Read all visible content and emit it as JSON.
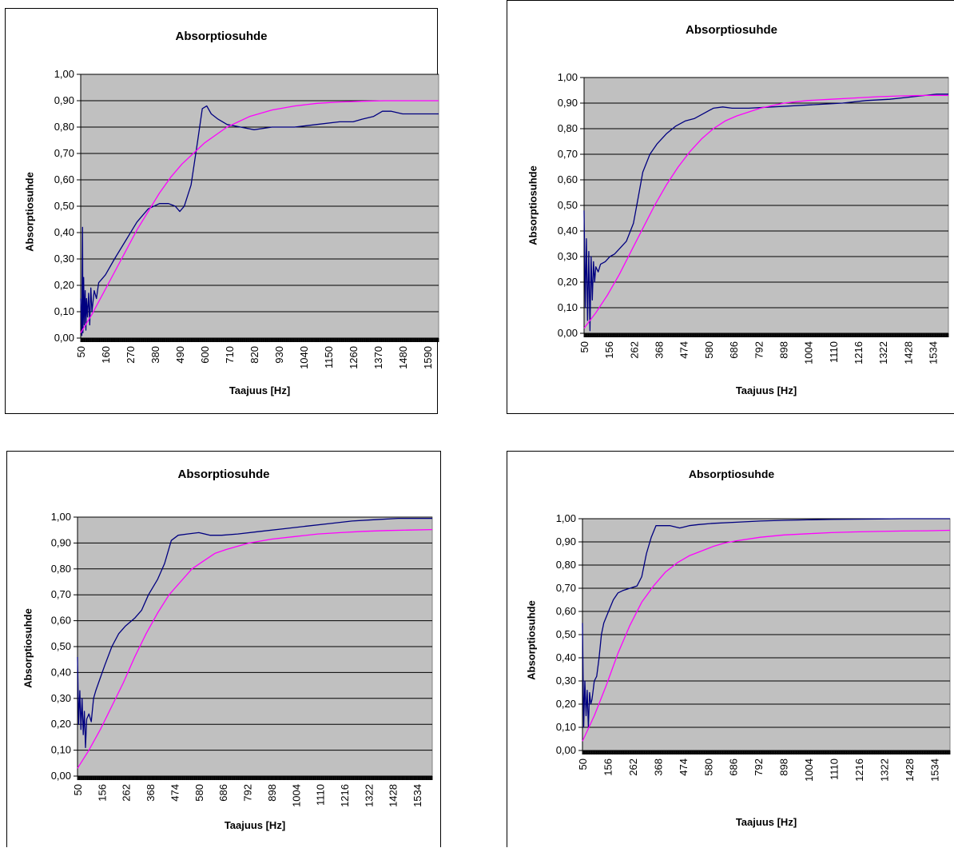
{
  "chart_data": [
    {
      "type": "line",
      "title": "Absorptiosuhde",
      "xlabel": "Taajuus [Hz]",
      "ylabel": "Absorptiosuhde",
      "x_tick_labels": [
        "50",
        "160",
        "270",
        "380",
        "490",
        "600",
        "710",
        "820",
        "930",
        "1040",
        "1150",
        "1260",
        "1370",
        "1480",
        "1590"
      ],
      "y_tick_labels": [
        "0,00",
        "0,10",
        "0,20",
        "0,30",
        "0,40",
        "0,50",
        "0,60",
        "0,70",
        "0,80",
        "0,90",
        "1,00"
      ],
      "xlim": [
        50,
        1640
      ],
      "ylim": [
        0,
        1
      ],
      "grid": true,
      "plot_background": "#c0c0c0",
      "series": [
        {
          "color": "#000080",
          "x": [
            50,
            55,
            58,
            60,
            63,
            66,
            70,
            73,
            76,
            80,
            85,
            90,
            95,
            100,
            110,
            120,
            130,
            140,
            160,
            200,
            250,
            300,
            350,
            400,
            440,
            470,
            490,
            510,
            540,
            570,
            590,
            610,
            630,
            660,
            700,
            760,
            820,
            900,
            1000,
            1100,
            1200,
            1260,
            1300,
            1350,
            1390,
            1430,
            1480,
            1550,
            1640
          ],
          "y": [
            0.15,
            0.01,
            0.42,
            0.02,
            0.23,
            0.05,
            0.18,
            0.03,
            0.15,
            0.08,
            0.17,
            0.05,
            0.19,
            0.1,
            0.18,
            0.15,
            0.21,
            0.22,
            0.24,
            0.3,
            0.37,
            0.44,
            0.49,
            0.51,
            0.51,
            0.5,
            0.48,
            0.5,
            0.58,
            0.75,
            0.87,
            0.88,
            0.85,
            0.83,
            0.81,
            0.8,
            0.79,
            0.8,
            0.8,
            0.81,
            0.82,
            0.82,
            0.83,
            0.84,
            0.86,
            0.86,
            0.85,
            0.85,
            0.85
          ]
        },
        {
          "color": "#ff00ff",
          "x": [
            50,
            100,
            150,
            200,
            250,
            300,
            350,
            400,
            450,
            500,
            550,
            600,
            650,
            700,
            800,
            900,
            1000,
            1100,
            1200,
            1300,
            1400,
            1500,
            1640
          ],
          "y": [
            0.02,
            0.09,
            0.17,
            0.25,
            0.33,
            0.41,
            0.48,
            0.55,
            0.61,
            0.66,
            0.7,
            0.74,
            0.77,
            0.8,
            0.84,
            0.865,
            0.88,
            0.89,
            0.895,
            0.898,
            0.9,
            0.9,
            0.9
          ]
        }
      ]
    },
    {
      "type": "line",
      "title": "Absorptiosuhde",
      "xlabel": "Taajuus [Hz]",
      "ylabel": "Absorptiosuhde",
      "x_tick_labels": [
        "50",
        "156",
        "262",
        "368",
        "474",
        "580",
        "686",
        "792",
        "898",
        "1004",
        "1110",
        "1216",
        "1322",
        "1428",
        "1534"
      ],
      "y_tick_labels": [
        "0,00",
        "0,10",
        "0,20",
        "0,30",
        "0,40",
        "0,50",
        "0,60",
        "0,70",
        "0,80",
        "0,90",
        "1,00"
      ],
      "xlim": [
        50,
        1600
      ],
      "ylim": [
        0,
        1
      ],
      "grid": true,
      "plot_background": "#c0c0c0",
      "series": [
        {
          "color": "#000080",
          "x": [
            50,
            55,
            60,
            65,
            70,
            75,
            80,
            85,
            90,
            95,
            100,
            110,
            120,
            140,
            160,
            180,
            200,
            230,
            260,
            280,
            300,
            330,
            360,
            400,
            440,
            480,
            520,
            560,
            600,
            640,
            680,
            750,
            850,
            950,
            1050,
            1150,
            1250,
            1350,
            1450,
            1550,
            1600
          ],
          "y": [
            0.48,
            0.1,
            0.37,
            0.05,
            0.32,
            0.01,
            0.3,
            0.13,
            0.28,
            0.2,
            0.26,
            0.24,
            0.27,
            0.28,
            0.3,
            0.31,
            0.33,
            0.36,
            0.43,
            0.53,
            0.63,
            0.7,
            0.74,
            0.78,
            0.81,
            0.83,
            0.84,
            0.86,
            0.88,
            0.885,
            0.88,
            0.88,
            0.885,
            0.89,
            0.895,
            0.9,
            0.91,
            0.915,
            0.925,
            0.935,
            0.935
          ]
        },
        {
          "color": "#ff00ff",
          "x": [
            50,
            100,
            150,
            200,
            250,
            300,
            350,
            400,
            450,
            500,
            550,
            600,
            650,
            700,
            800,
            900,
            1000,
            1100,
            1200,
            1300,
            1400,
            1500,
            1600
          ],
          "y": [
            0.02,
            0.08,
            0.15,
            0.23,
            0.32,
            0.41,
            0.5,
            0.58,
            0.65,
            0.71,
            0.76,
            0.8,
            0.83,
            0.85,
            0.88,
            0.9,
            0.91,
            0.915,
            0.92,
            0.925,
            0.928,
            0.93,
            0.93
          ]
        }
      ]
    },
    {
      "type": "line",
      "title": "Absorptiosuhde",
      "xlabel": "Taajuus [Hz]",
      "ylabel": "Absorptiosuhde",
      "x_tick_labels": [
        "50",
        "156",
        "262",
        "368",
        "474",
        "580",
        "686",
        "792",
        "898",
        "1004",
        "1110",
        "1216",
        "1322",
        "1428",
        "1534"
      ],
      "y_tick_labels": [
        "0,00",
        "0,10",
        "0,20",
        "0,30",
        "0,40",
        "0,50",
        "0,60",
        "0,70",
        "0,80",
        "0,90",
        "1,00"
      ],
      "xlim": [
        50,
        1600
      ],
      "ylim": [
        0,
        1
      ],
      "grid": true,
      "plot_background": "#c0c0c0",
      "series": [
        {
          "color": "#000080",
          "x": [
            50,
            55,
            60,
            65,
            70,
            75,
            80,
            85,
            90,
            100,
            110,
            120,
            130,
            150,
            170,
            200,
            230,
            260,
            300,
            330,
            360,
            400,
            430,
            460,
            490,
            530,
            580,
            630,
            680,
            750,
            850,
            950,
            1050,
            1150,
            1250,
            1350,
            1450,
            1550,
            1600
          ],
          "y": [
            0.46,
            0.2,
            0.33,
            0.18,
            0.3,
            0.16,
            0.25,
            0.11,
            0.22,
            0.24,
            0.21,
            0.3,
            0.33,
            0.38,
            0.43,
            0.5,
            0.55,
            0.58,
            0.61,
            0.64,
            0.7,
            0.76,
            0.82,
            0.91,
            0.93,
            0.935,
            0.94,
            0.93,
            0.93,
            0.935,
            0.945,
            0.955,
            0.965,
            0.975,
            0.985,
            0.99,
            0.995,
            0.995,
            0.995
          ]
        },
        {
          "color": "#ff00ff",
          "x": [
            50,
            100,
            150,
            200,
            250,
            300,
            350,
            400,
            450,
            500,
            550,
            600,
            650,
            700,
            800,
            900,
            1000,
            1100,
            1200,
            1300,
            1400,
            1500,
            1600
          ],
          "y": [
            0.03,
            0.1,
            0.18,
            0.27,
            0.36,
            0.46,
            0.55,
            0.63,
            0.7,
            0.75,
            0.8,
            0.83,
            0.86,
            0.875,
            0.9,
            0.915,
            0.925,
            0.935,
            0.94,
            0.945,
            0.948,
            0.95,
            0.952
          ]
        }
      ]
    },
    {
      "type": "line",
      "title": "Absorptiosuhde",
      "xlabel": "Taajuus [Hz]",
      "ylabel": "Absorptiosuhde",
      "x_tick_labels": [
        "50",
        "156",
        "262",
        "368",
        "474",
        "580",
        "686",
        "792",
        "898",
        "1004",
        "1110",
        "1216",
        "1322",
        "1428",
        "1534"
      ],
      "y_tick_labels": [
        "0,00",
        "0,10",
        "0,20",
        "0,30",
        "0,40",
        "0,50",
        "0,60",
        "0,70",
        "0,80",
        "0,90",
        "1,00"
      ],
      "xlim": [
        50,
        1600
      ],
      "ylim": [
        0,
        1
      ],
      "grid": true,
      "plot_background": "#c0c0c0",
      "series": [
        {
          "color": "#000080",
          "x": [
            50,
            55,
            60,
            65,
            70,
            75,
            80,
            85,
            90,
            95,
            100,
            110,
            120,
            130,
            140,
            160,
            180,
            200,
            220,
            250,
            280,
            300,
            320,
            340,
            360,
            380,
            420,
            460,
            480,
            500,
            540,
            600,
            700,
            800,
            900,
            1000,
            1100,
            1200,
            1300,
            1400,
            1500,
            1600
          ],
          "y": [
            0.55,
            0.1,
            0.3,
            0.15,
            0.26,
            0.1,
            0.25,
            0.2,
            0.22,
            0.26,
            0.3,
            0.32,
            0.4,
            0.5,
            0.55,
            0.6,
            0.65,
            0.68,
            0.69,
            0.7,
            0.71,
            0.75,
            0.85,
            0.92,
            0.97,
            0.97,
            0.97,
            0.96,
            0.965,
            0.97,
            0.975,
            0.98,
            0.985,
            0.99,
            0.993,
            0.995,
            0.997,
            0.998,
            0.999,
            1.0,
            1.0,
            1.0
          ]
        },
        {
          "color": "#ff00ff",
          "x": [
            50,
            100,
            150,
            200,
            250,
            300,
            350,
            400,
            450,
            500,
            550,
            600,
            650,
            700,
            800,
            900,
            1000,
            1100,
            1200,
            1300,
            1400,
            1500,
            1600
          ],
          "y": [
            0.04,
            0.15,
            0.28,
            0.42,
            0.54,
            0.64,
            0.71,
            0.77,
            0.81,
            0.84,
            0.86,
            0.88,
            0.895,
            0.905,
            0.92,
            0.93,
            0.935,
            0.94,
            0.943,
            0.945,
            0.947,
            0.948,
            0.95
          ]
        }
      ]
    }
  ]
}
